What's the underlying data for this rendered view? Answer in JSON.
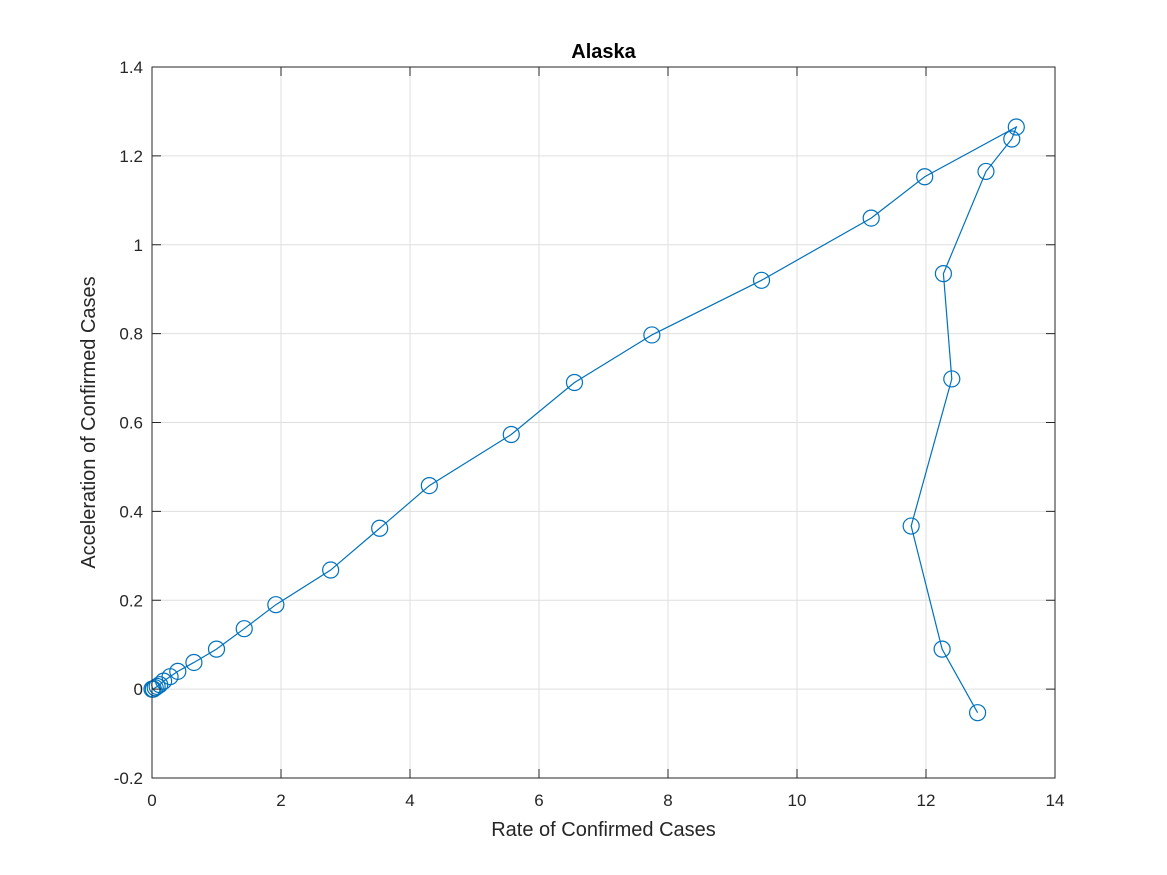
{
  "chart_data": {
    "type": "line",
    "title": "Alaska",
    "xlabel": "Rate of Confirmed Cases",
    "ylabel": "Acceleration of Confirmed Cases",
    "xlim": [
      0,
      14
    ],
    "ylim": [
      -0.2,
      1.4
    ],
    "xticks": [
      "0",
      "2",
      "4",
      "6",
      "8",
      "10",
      "12",
      "14"
    ],
    "yticks": [
      "-0.2",
      "0",
      "0.2",
      "0.4",
      "0.6",
      "0.8",
      "1",
      "1.2",
      "1.4"
    ],
    "grid": true,
    "marker": "circle",
    "series": [
      {
        "color": "#0072BD",
        "x": [
          0.0,
          0.02,
          0.05,
          0.08,
          0.12,
          0.18,
          0.28,
          0.4,
          0.65,
          1.0,
          1.43,
          1.92,
          2.77,
          3.53,
          4.3,
          5.57,
          6.55,
          7.75,
          9.45,
          11.15,
          11.98,
          13.4,
          13.33,
          12.93,
          12.27,
          12.4,
          11.77,
          12.25,
          12.8
        ],
        "y": [
          0.0,
          0.0,
          0.003,
          0.006,
          0.01,
          0.018,
          0.028,
          0.04,
          0.06,
          0.09,
          0.136,
          0.19,
          0.268,
          0.362,
          0.458,
          0.573,
          0.69,
          0.797,
          0.92,
          1.06,
          1.153,
          1.265,
          1.238,
          1.165,
          0.935,
          0.698,
          0.367,
          0.09,
          -0.053
        ]
      }
    ]
  }
}
